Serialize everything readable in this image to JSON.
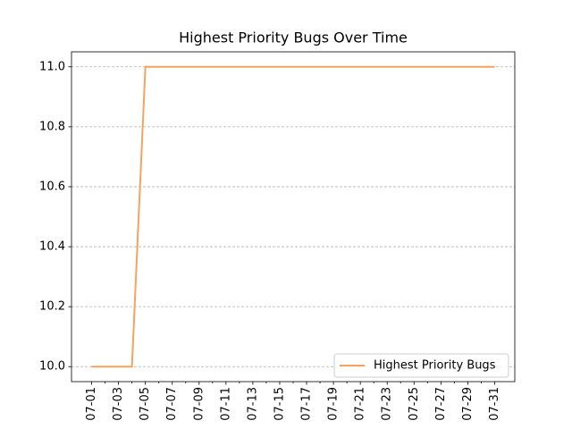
{
  "chart_data": {
    "type": "line",
    "title": "Highest Priority Bugs Over Time",
    "categories": [
      "07-01",
      null,
      "07-03",
      null,
      "07-05",
      null,
      "07-07",
      null,
      "07-09",
      null,
      "07-11",
      null,
      "07-13",
      null,
      "07-15",
      null,
      "07-17",
      null,
      "07-19",
      null,
      "07-21",
      null,
      "07-23",
      null,
      "07-25",
      null,
      "07-27",
      null,
      "07-29",
      null,
      "07-31"
    ],
    "series": [
      {
        "name": "Highest Priority Bugs",
        "color": "#f4a460",
        "values": [
          10,
          10,
          10,
          10,
          11,
          11,
          11,
          11,
          11,
          11,
          11,
          11,
          11,
          11,
          11,
          11,
          11,
          11,
          11,
          11,
          11,
          11,
          11,
          11,
          11,
          11,
          11,
          11,
          11,
          11,
          11
        ]
      }
    ],
    "ylim": [
      9.95,
      11.05
    ],
    "yticks": [
      {
        "value": 10,
        "label": "10.0"
      },
      10.2,
      10.4,
      10.6,
      10.8,
      {
        "value": 11,
        "label": "11.0"
      }
    ],
    "grid": true,
    "legend": "lower right"
  }
}
